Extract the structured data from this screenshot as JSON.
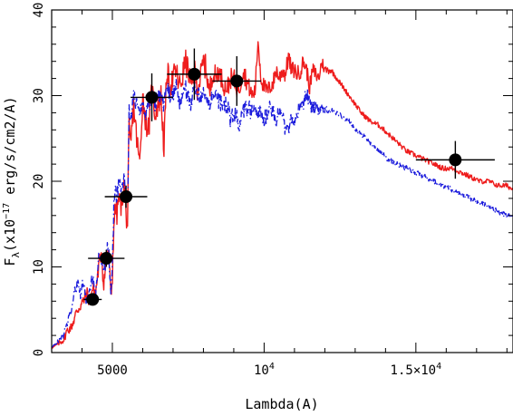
{
  "chart_data": {
    "type": "line",
    "xlabel": "Lambda(A)",
    "ylabel_parts": {
      "main": "F",
      "sub": "λ",
      "open": "(x10",
      "sup": "−17",
      "units": " erg/s/cm2/A)"
    },
    "xlim": [
      3000,
      18200
    ],
    "ylim": [
      0,
      40
    ],
    "x_ticks": [
      {
        "value": 5000,
        "label": "5000"
      },
      {
        "value": 10000,
        "label": "10",
        "sup": "4"
      },
      {
        "value": 15000,
        "label": "1.5×10",
        "sup": "4"
      }
    ],
    "y_ticks": [
      {
        "value": 0,
        "label": "0"
      },
      {
        "value": 10,
        "label": "10"
      },
      {
        "value": 20,
        "label": "20"
      },
      {
        "value": 30,
        "label": "30"
      },
      {
        "value": 40,
        "label": "40"
      }
    ],
    "x_minor_step": 1000,
    "y_minor_step": 2,
    "series": [
      {
        "color": "#ee1c1c",
        "style": "solid",
        "x": [
          3000,
          3200,
          3400,
          3500,
          3650,
          3750,
          3850,
          3950,
          4050,
          4150,
          4250,
          4350,
          4450,
          4550,
          4650,
          4700,
          4750,
          4800,
          4850,
          4900,
          4950,
          5000,
          5050,
          5100,
          5150,
          5200,
          5300,
          5400,
          5450,
          5500,
          5550,
          5600,
          5700,
          5800,
          5900,
          6000,
          6100,
          6200,
          6300,
          6400,
          6500,
          6600,
          6700,
          6800,
          6900,
          7000,
          7100,
          7200,
          7300,
          7400,
          7500,
          7600,
          7700,
          7800,
          7900,
          8000,
          8100,
          8200,
          8300,
          8400,
          8500,
          8600,
          8700,
          8800,
          8900,
          9000,
          9100,
          9200,
          9300,
          9400,
          9500,
          9600,
          9700,
          9800,
          9900,
          10000,
          10100,
          10200,
          10300,
          10400,
          10500,
          10600,
          10700,
          10800,
          10900,
          11000,
          11100,
          11200,
          11300,
          11400,
          11500,
          11600,
          11700,
          11800,
          11900,
          12000,
          12200,
          12400,
          12600,
          12800,
          13000,
          13200,
          13500,
          13800,
          14100,
          14400,
          14700,
          15000,
          15300,
          15600,
          15900,
          16200,
          16500,
          16800,
          17100,
          17400,
          17700,
          18000,
          18200
        ],
        "y": [
          0.5,
          1.0,
          1.5,
          2.5,
          3,
          4,
          5,
          5.5,
          6,
          7,
          6,
          7.5,
          7,
          10,
          12,
          8,
          9,
          10.5,
          12,
          10.5,
          6,
          9,
          15,
          17,
          16,
          18,
          17,
          20,
          16,
          15,
          26,
          24,
          29,
          25,
          22,
          30,
          27,
          26,
          31,
          28,
          29,
          30,
          24,
          33,
          31,
          32,
          33,
          31,
          32,
          34,
          33,
          31,
          33,
          31,
          32,
          34,
          33,
          30,
          33,
          32,
          33,
          32,
          31,
          31,
          32,
          32,
          31,
          31,
          33,
          32,
          31,
          30,
          30.5,
          36.5,
          32,
          31,
          30.5,
          31,
          31.5,
          33,
          32,
          33,
          32.5,
          34.5,
          33,
          33,
          32.5,
          33,
          34,
          33,
          31,
          33,
          32.5,
          32,
          34,
          33,
          33,
          32,
          31,
          30,
          29,
          28,
          27,
          26.5,
          25.5,
          24.5,
          23.5,
          23,
          22.5,
          22,
          21.5,
          21.5,
          21,
          20.5,
          20,
          20,
          19.5,
          19.5,
          19
        ],
        "jitter": [
          0,
          0.3,
          0.4,
          0.6,
          0.5,
          0.8,
          0.8,
          0.8,
          0.8,
          0.9,
          0.8,
          0.9,
          0.9,
          0.9,
          1.0,
          1.2,
          1.2,
          1.2,
          1.2,
          1.2,
          1.2,
          1.2,
          1.2,
          1.2,
          1.2,
          1.2,
          1.2,
          1.2,
          1.2,
          1.2,
          1.5,
          1.5,
          1.5,
          1.5,
          1.5,
          1.5,
          1.5,
          1.5,
          1.5,
          1.5,
          1.5,
          1.5,
          1.5,
          1.5,
          1.5,
          1.5,
          1.5,
          1.5,
          1.5,
          1.5,
          1.5,
          1.5,
          1.5,
          1.5,
          1.5,
          1.5,
          1.5,
          1.5,
          1.5,
          1.5,
          1.2,
          1.2,
          1.2,
          1.2,
          1.2,
          1.2,
          1.2,
          1.2,
          1.2,
          1.2,
          1.0,
          1.0,
          1.0,
          1.0,
          1.0,
          1.0,
          1.0,
          1.0,
          1.0,
          1.0,
          1.0,
          1.0,
          1.0,
          1.0,
          1.0,
          1.0,
          1.0,
          1.0,
          1.0,
          1.0,
          0.9,
          0.9,
          0.9,
          0.9,
          0.8,
          0.6,
          0.4,
          0.3,
          0.3,
          0.3,
          0.3,
          0.3,
          0.3,
          0.3,
          0.3,
          0.3,
          0.3,
          0.3,
          0.3,
          0.3,
          0.3,
          0.3,
          0.3,
          0.3,
          0.3,
          0.3,
          0.3,
          0.3,
          0.3
        ]
      },
      {
        "color": "#1a1adc",
        "style": "dashdot",
        "x": [
          3000,
          3200,
          3400,
          3500,
          3650,
          3750,
          3850,
          3950,
          4050,
          4150,
          4250,
          4350,
          4450,
          4550,
          4650,
          4700,
          4750,
          4800,
          4850,
          4900,
          4950,
          5000,
          5050,
          5100,
          5150,
          5200,
          5300,
          5400,
          5450,
          5500,
          5550,
          5600,
          5700,
          5800,
          5900,
          6000,
          6100,
          6200,
          6300,
          6400,
          6500,
          6600,
          6700,
          6800,
          6900,
          7000,
          7100,
          7200,
          7300,
          7400,
          7500,
          7600,
          7700,
          7800,
          7900,
          8000,
          8100,
          8200,
          8300,
          8400,
          8500,
          8600,
          8700,
          8800,
          8900,
          9000,
          9100,
          9200,
          9300,
          9400,
          9500,
          9600,
          9700,
          9800,
          9900,
          10000,
          10100,
          10200,
          10300,
          10400,
          10500,
          10600,
          10700,
          10800,
          10900,
          11000,
          11100,
          11200,
          11300,
          11400,
          11500,
          11600,
          11700,
          11800,
          11900,
          12000,
          12200,
          12400,
          12600,
          12800,
          13000,
          13200,
          13500,
          13800,
          14100,
          14400,
          14700,
          15000,
          15300,
          15600,
          15900,
          16200,
          16500,
          16800,
          17100,
          17400,
          17700,
          18000,
          18200
        ],
        "y": [
          0.6,
          1.2,
          2.0,
          3.5,
          5,
          7,
          8,
          7,
          8,
          6,
          7,
          9,
          7,
          11,
          11,
          9,
          10,
          11,
          12.5,
          10.5,
          7,
          10,
          17,
          19,
          18,
          20,
          19,
          21,
          18,
          17,
          28,
          27,
          30,
          29,
          28,
          29,
          28,
          29,
          30,
          29,
          30,
          30,
          29,
          31,
          30,
          30,
          31,
          29,
          30,
          31,
          30,
          29,
          31,
          30,
          30,
          30,
          30,
          29,
          30,
          30,
          29.5,
          29,
          29,
          28.5,
          27,
          28,
          27.5,
          26.5,
          28,
          28.5,
          28.5,
          28,
          28,
          28,
          28,
          27,
          28,
          29,
          28,
          27,
          28,
          28,
          26,
          26,
          27,
          26,
          28,
          29,
          29,
          30.5,
          29,
          28.5,
          28.5,
          28.5,
          28.5,
          28.5,
          28.3,
          28,
          27.5,
          27,
          26,
          25.5,
          24.5,
          23.5,
          22.5,
          22,
          21.5,
          21,
          20.5,
          20,
          19.5,
          19,
          18.5,
          18,
          17.5,
          17,
          16.5,
          16,
          16
        ],
        "jitter": [
          0,
          0.3,
          0.4,
          0.6,
          0.6,
          0.8,
          0.8,
          0.8,
          0.8,
          0.8,
          0.8,
          0.8,
          0.8,
          0.8,
          0.9,
          1.0,
          1.0,
          1.0,
          1.0,
          1.0,
          1.0,
          1.0,
          1.0,
          1.0,
          1.0,
          1.0,
          1.0,
          1.0,
          1.0,
          1.0,
          1.0,
          1.0,
          1.0,
          1.0,
          1.0,
          1.0,
          1.0,
          1.0,
          1.0,
          1.0,
          1.0,
          1.0,
          1.0,
          1.0,
          1.0,
          1.0,
          1.0,
          1.0,
          1.0,
          1.0,
          1.0,
          1.0,
          1.0,
          1.0,
          1.0,
          1.0,
          1.0,
          1.0,
          1.0,
          1.0,
          1.0,
          1.0,
          1.0,
          1.0,
          1.0,
          1.0,
          1.0,
          1.0,
          1.0,
          1.0,
          1.0,
          1.0,
          1.0,
          1.0,
          1.0,
          1.0,
          1.0,
          1.0,
          1.0,
          1.0,
          1.0,
          1.0,
          1.0,
          1.0,
          1.0,
          1.0,
          1.0,
          1.0,
          1.0,
          1.0,
          0.8,
          0.8,
          0.8,
          0.8,
          0.6,
          0.5,
          0.4,
          0.3,
          0.3,
          0.3,
          0.3,
          0.3,
          0.3,
          0.3,
          0.3,
          0.3,
          0.3,
          0.3,
          0.3,
          0.3,
          0.3,
          0.3,
          0.3,
          0.3,
          0.3,
          0.3,
          0.3,
          0.3,
          0.3
        ]
      }
    ],
    "points": [
      {
        "x": 4350,
        "y": 6.2,
        "xerr": 300,
        "yerr": 0.7
      },
      {
        "x": 4800,
        "y": 11.0,
        "xerr": 600,
        "yerr": 1.0
      },
      {
        "x": 5450,
        "y": 18.2,
        "xerr": 700,
        "yerr": 1.3
      },
      {
        "x": 6300,
        "y": 29.8,
        "xerr": 700,
        "yerr": 2.8
      },
      {
        "x": 7700,
        "y": 32.5,
        "xerr": 900,
        "yerr": 3.0
      },
      {
        "x": 9100,
        "y": 31.7,
        "xerr": 800,
        "yerr": 2.9
      },
      {
        "x": 16300,
        "y": 22.5,
        "xerr": 1300,
        "yerr": 2.2
      }
    ]
  }
}
